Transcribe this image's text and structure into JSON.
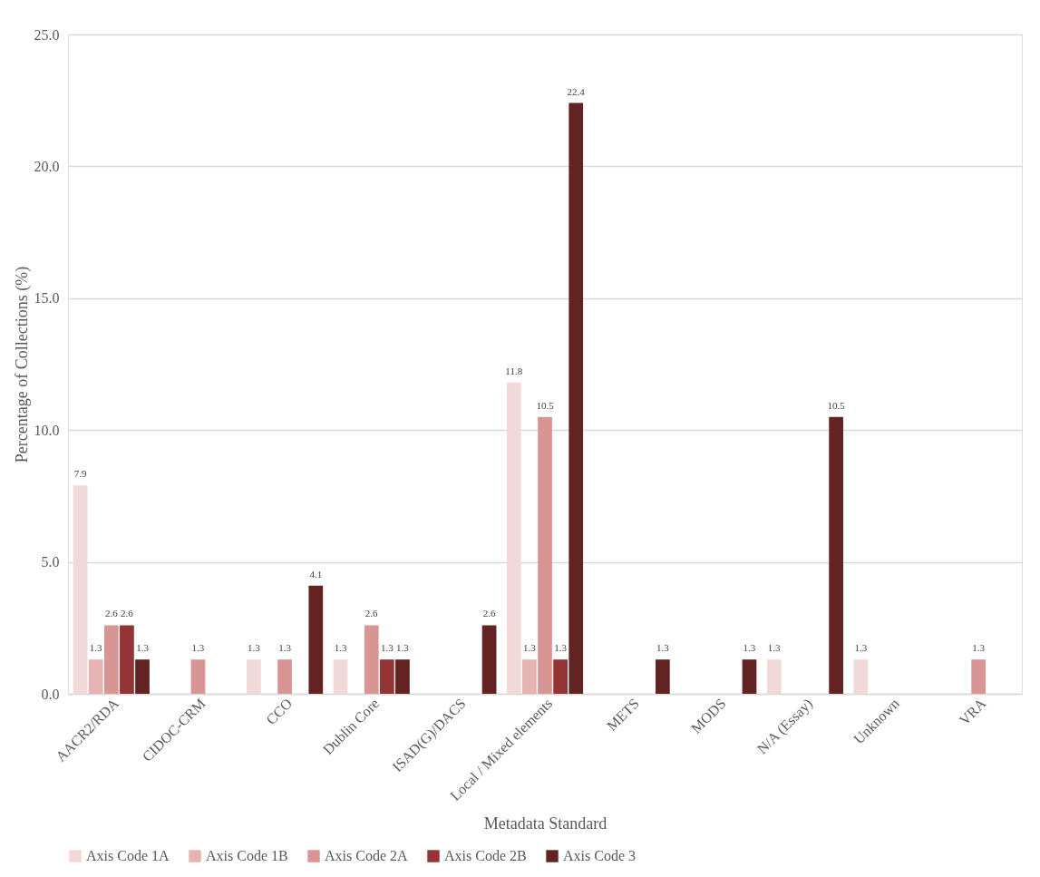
{
  "chart_data": {
    "type": "bar",
    "xlabel": "Metadata Standard",
    "ylabel": "Percentage of Collections (%)",
    "categories": [
      "AACR2/RDA",
      "CIDOC-CRM",
      "CCO",
      "Dublin Core",
      "ISAD(G)/DACS",
      "Local / Mixed elements",
      "METS",
      "MODS",
      "N/A (Essay)",
      "Unknown",
      "VRA"
    ],
    "series": [
      {
        "name": "Axis Code 1A",
        "color": "#f2d9d9",
        "values": [
          7.9,
          null,
          1.3,
          1.3,
          null,
          11.8,
          null,
          null,
          1.3,
          1.3,
          null
        ]
      },
      {
        "name": "Axis Code 1B",
        "color": "#e6b3b3",
        "values": [
          1.3,
          null,
          null,
          null,
          null,
          1.3,
          null,
          null,
          null,
          null,
          null
        ]
      },
      {
        "name": "Axis Code 2A",
        "color": "#d99494",
        "values": [
          2.6,
          1.3,
          1.3,
          2.6,
          null,
          10.5,
          null,
          null,
          null,
          null,
          1.3
        ]
      },
      {
        "name": "Axis Code 2B",
        "color": "#943434",
        "values": [
          2.6,
          null,
          null,
          1.3,
          null,
          1.3,
          null,
          null,
          null,
          null,
          null
        ]
      },
      {
        "name": "Axis Code 3",
        "color": "#632323",
        "values": [
          1.3,
          null,
          4.1,
          1.3,
          2.6,
          22.4,
          1.3,
          1.3,
          10.5,
          null,
          null
        ]
      }
    ],
    "ylim": [
      0,
      25
    ],
    "yticks": [
      {
        "value": 0,
        "label": "0.0"
      },
      {
        "value": 5,
        "label": "5.0"
      },
      {
        "value": 10,
        "label": "10.0"
      },
      {
        "value": 15,
        "label": "15.0"
      },
      {
        "value": 20,
        "label": "20.0"
      },
      {
        "value": 25,
        "label": "25.0"
      }
    ],
    "grid": "y",
    "legend": "bottom",
    "data_labels": true
  }
}
